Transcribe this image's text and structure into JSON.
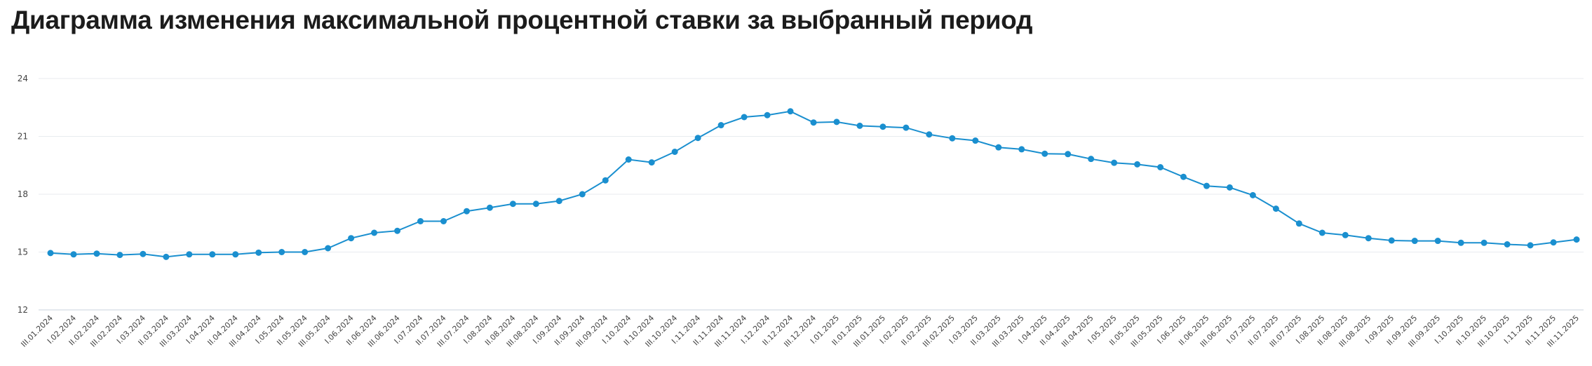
{
  "title": "Диаграмма изменения максимальной процентной ставки за выбранный период",
  "chart_data": {
    "type": "line",
    "title": "Диаграмма изменения максимальной процентной ставки за выбранный период",
    "xlabel": "",
    "ylabel": "",
    "ylim": [
      12,
      24
    ],
    "yticks": [
      12,
      15,
      18,
      21,
      24
    ],
    "grid": true,
    "color": "#1a8fcf",
    "categories": [
      "III.01.2024",
      "I.02.2024",
      "II.02.2024",
      "III.02.2024",
      "I.03.2024",
      "II.03.2024",
      "III.03.2024",
      "I.04.2024",
      "II.04.2024",
      "III.04.2024",
      "I.05.2024",
      "II.05.2024",
      "III.05.2024",
      "I.06.2024",
      "II.06.2024",
      "III.06.2024",
      "I.07.2024",
      "II.07.2024",
      "III.07.2024",
      "I.08.2024",
      "II.08.2024",
      "III.08.2024",
      "I.09.2024",
      "II.09.2024",
      "III.09.2024",
      "I.10.2024",
      "II.10.2024",
      "III.10.2024",
      "I.11.2024",
      "II.11.2024",
      "III.11.2024",
      "I.12.2024",
      "II.12.2024",
      "III.12.2024",
      "I.01.2025",
      "II.01.2025",
      "III.01.2025",
      "I.02.2025",
      "II.02.2025",
      "III.02.2025",
      "I.03.2025",
      "II.03.2025",
      "III.03.2025",
      "I.04.2025",
      "II.04.2025",
      "III.04.2025",
      "I.05.2025",
      "II.05.2025",
      "III.05.2025",
      "I.06.2025",
      "II.06.2025",
      "III.06.2025",
      "I.07.2025",
      "II.07.2025",
      "III.07.2025",
      "I.08.2025",
      "II.08.2025",
      "III.08.2025",
      "I.09.2025",
      "II.09.2025",
      "III.09.2025",
      "I.10.2025",
      "II.10.2025",
      "III.10.2025",
      "I.11.2025",
      "II.11.2025",
      "III.11.2025"
    ],
    "series": [
      {
        "values": [
          14.95,
          14.88,
          14.92,
          14.85,
          14.9,
          14.75,
          14.88,
          14.88,
          14.88,
          14.97,
          15.0,
          15.0,
          15.2,
          15.72,
          16.0,
          16.1,
          16.6,
          16.6,
          17.12,
          17.3,
          17.5,
          17.5,
          17.65,
          18.0,
          18.72,
          19.8,
          19.65,
          20.2,
          20.92,
          21.58,
          22.0,
          22.1,
          22.3,
          21.72,
          21.75,
          21.55,
          21.5,
          21.45,
          21.1,
          20.9,
          20.78,
          20.43,
          20.33,
          20.1,
          20.08,
          19.83,
          19.63,
          19.55,
          19.4,
          18.9,
          18.43,
          18.35,
          17.95,
          17.25,
          16.48,
          16.0,
          15.88,
          15.72,
          15.6,
          15.58,
          15.58,
          15.48,
          15.48,
          15.4,
          15.35,
          15.5,
          15.65
        ]
      }
    ]
  }
}
